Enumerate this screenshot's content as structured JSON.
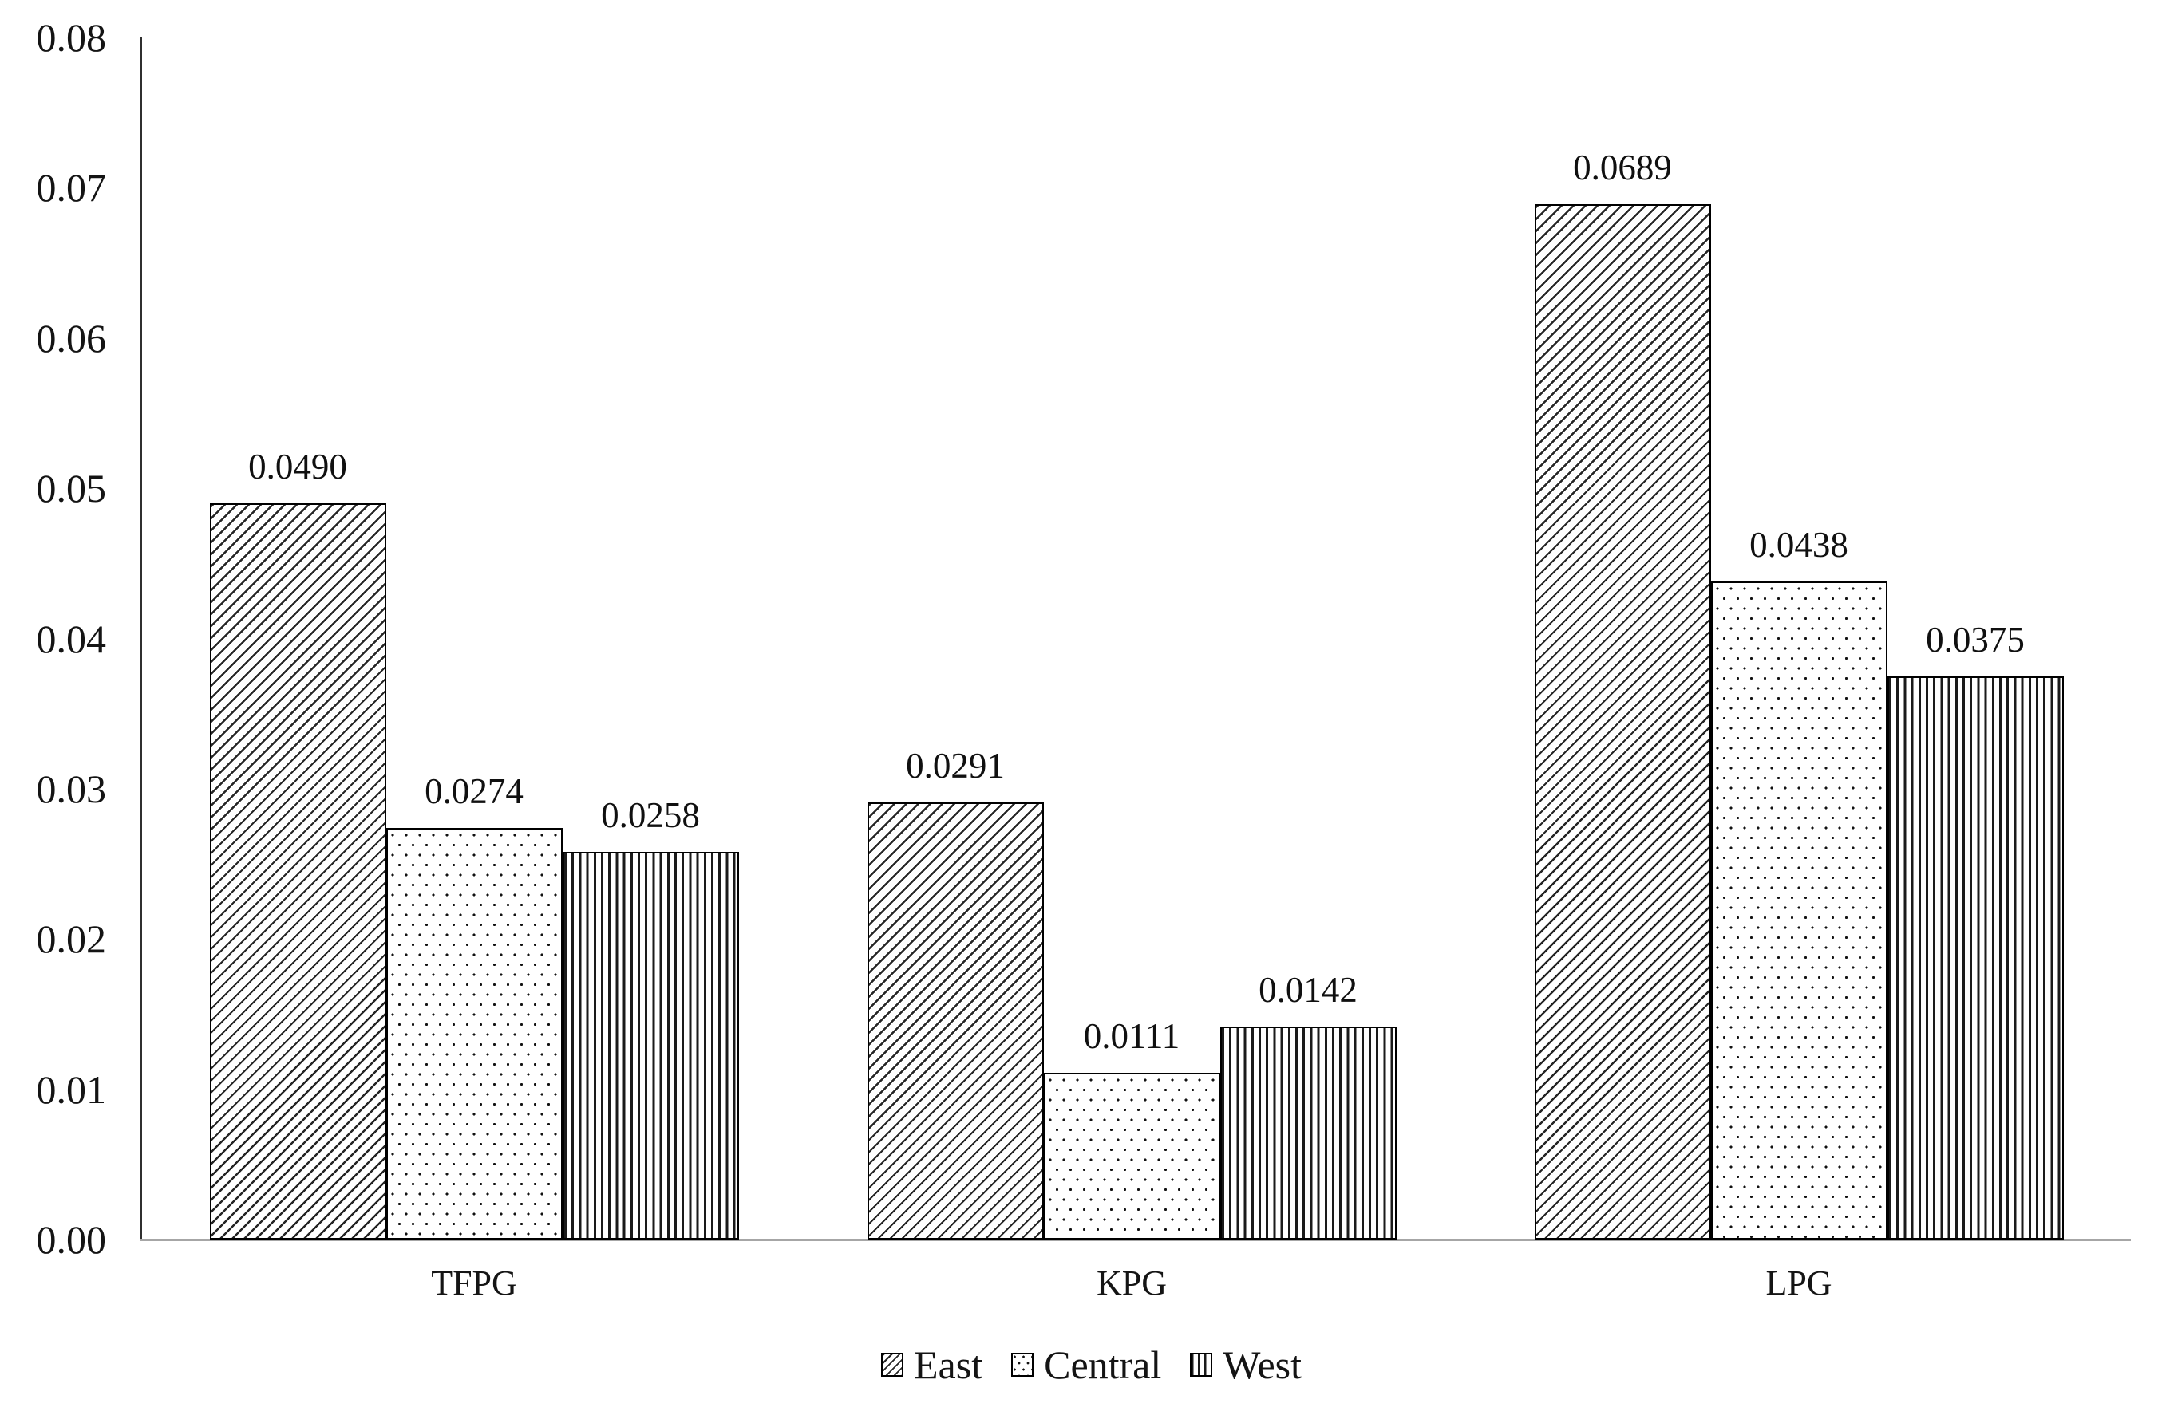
{
  "chart_data": {
    "type": "bar",
    "title": "",
    "xlabel": "",
    "ylabel": "",
    "categories": [
      "TFPG",
      "KPG",
      "LPG"
    ],
    "series": [
      {
        "name": "East",
        "pattern": "diagonal-hatch",
        "values": [
          0.049,
          0.0291,
          0.0689
        ],
        "data_labels": [
          "0.0490",
          "0.0291",
          "0.0689"
        ]
      },
      {
        "name": "Central",
        "pattern": "dots",
        "values": [
          0.0274,
          0.0111,
          0.0438
        ],
        "data_labels": [
          "0.0274",
          "0.0111",
          "0.0438"
        ]
      },
      {
        "name": "West",
        "pattern": "vertical-lines",
        "values": [
          0.0258,
          0.0142,
          0.0375
        ],
        "data_labels": [
          "0.0258",
          "0.0142",
          "0.0375"
        ]
      }
    ],
    "ylim": [
      0,
      0.08
    ],
    "ytick_labels": [
      "0.00",
      "0.01",
      "0.02",
      "0.03",
      "0.04",
      "0.05",
      "0.06",
      "0.07",
      "0.08"
    ],
    "grid": false,
    "legend_position": "bottom",
    "legend_entries": [
      "East",
      "Central",
      "West"
    ]
  },
  "colors": {
    "background": "#ffffff",
    "text": "#141414",
    "y_axis_line": "#2f2f2f",
    "x_axis_line": "#a6a6a6",
    "bar_border": "#000000",
    "bar_fill": "#ffffff",
    "pattern_ink": "#1a1a1a"
  }
}
